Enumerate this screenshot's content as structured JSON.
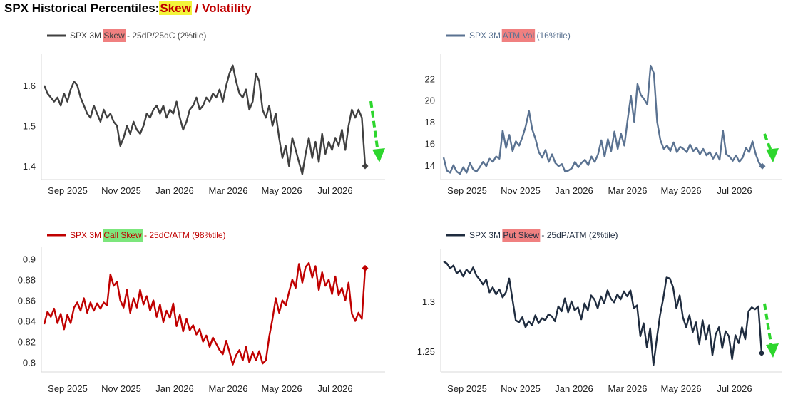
{
  "page": {
    "title_prefix": "SPX Historical Percentiles:",
    "title_highlight": "Skew",
    "title_sep": "/",
    "title_suffix": "Volatility"
  },
  "colors": {
    "skew": "#404040",
    "atm_vol": "#5a7291",
    "call_skew": "#c00000",
    "put_skew": "#1f2c3f",
    "arrow": "#2dd62d",
    "hl_red": "#f08080",
    "hl_green": "#7ce67c",
    "hl_yellow": "#f3f53a",
    "axis": "#d9d9d9"
  },
  "chart_data": [
    {
      "id": "skew",
      "type": "line",
      "legend": {
        "prefix": "SPX 3M ",
        "highlight": "Skew",
        "suffix": " - 25dP/25dC (2%tile)",
        "highlight_color": "#f08080"
      },
      "x_ticks": [
        "Sep 2025",
        "Nov 2025",
        "Jan 2026",
        "Mar 2026",
        "May 2026",
        "Jul 2026"
      ],
      "y_ticks": [
        1.4,
        1.5,
        1.6
      ],
      "ylim": [
        1.37,
        1.66
      ],
      "series": [
        {
          "color": "#404040",
          "values": [
            1.6,
            1.58,
            1.57,
            1.56,
            1.57,
            1.55,
            1.58,
            1.56,
            1.59,
            1.61,
            1.6,
            1.57,
            1.55,
            1.53,
            1.52,
            1.55,
            1.53,
            1.51,
            1.54,
            1.52,
            1.53,
            1.51,
            1.5,
            1.45,
            1.47,
            1.5,
            1.48,
            1.51,
            1.49,
            1.48,
            1.5,
            1.53,
            1.52,
            1.54,
            1.55,
            1.53,
            1.55,
            1.52,
            1.54,
            1.53,
            1.56,
            1.52,
            1.49,
            1.51,
            1.54,
            1.55,
            1.57,
            1.54,
            1.55,
            1.57,
            1.56,
            1.58,
            1.57,
            1.59,
            1.56,
            1.6,
            1.63,
            1.65,
            1.61,
            1.58,
            1.57,
            1.59,
            1.54,
            1.56,
            1.63,
            1.61,
            1.54,
            1.52,
            1.55,
            1.5,
            1.53,
            1.47,
            1.42,
            1.45,
            1.4,
            1.47,
            1.44,
            1.41,
            1.38,
            1.43,
            1.47,
            1.42,
            1.46,
            1.41,
            1.48,
            1.43,
            1.46,
            1.44,
            1.47,
            1.45,
            1.49,
            1.44,
            1.5,
            1.54,
            1.52,
            1.54,
            1.52,
            1.4
          ]
        }
      ],
      "end_marker": {
        "value": 1.4,
        "shape": "diamond"
      },
      "arrow": true
    },
    {
      "id": "atm_vol",
      "type": "line",
      "legend": {
        "prefix": "SPX 3M ",
        "highlight": "ATM Vol",
        "suffix": " (16%tile)",
        "highlight_color": "#f08080"
      },
      "x_ticks": [
        "Sep 2025",
        "Nov 2025",
        "Jan 2026",
        "Mar 2026",
        "May 2026",
        "Jul 2026"
      ],
      "y_ticks": [
        14,
        16,
        18,
        20,
        22
      ],
      "ylim": [
        12.8,
        23.6
      ],
      "series": [
        {
          "color": "#5a7291",
          "values": [
            14.7,
            13.5,
            13.3,
            14.0,
            13.4,
            13.2,
            13.8,
            13.3,
            14.2,
            13.6,
            13.4,
            13.8,
            14.3,
            13.9,
            14.6,
            14.3,
            14.8,
            14.6,
            17.2,
            15.6,
            16.8,
            15.3,
            16.2,
            15.8,
            16.6,
            17.6,
            19.0,
            17.3,
            16.4,
            15.2,
            14.7,
            15.4,
            14.3,
            15.0,
            14.2,
            13.9,
            14.1,
            13.4,
            13.5,
            13.7,
            14.3,
            13.8,
            14.2,
            14.5,
            14.0,
            14.8,
            14.3,
            15.0,
            16.3,
            14.8,
            16.4,
            15.3,
            17.1,
            15.5,
            16.9,
            15.8,
            18.2,
            20.4,
            18.0,
            21.5,
            20.5,
            20.1,
            19.6,
            23.2,
            22.5,
            18.0,
            16.3,
            15.5,
            15.8,
            15.3,
            16.1,
            15.2,
            15.7,
            15.5,
            15.2,
            15.9,
            15.3,
            15.6,
            15.0,
            15.5,
            14.9,
            15.2,
            14.6,
            15.1,
            14.5,
            17.2,
            15.0,
            14.8,
            14.4,
            14.9,
            14.3,
            14.7,
            15.6,
            15.2,
            16.2,
            15.0,
            14.2,
            13.9
          ]
        }
      ],
      "end_marker": {
        "value": 13.9,
        "shape": "diamond"
      },
      "arrow": true
    },
    {
      "id": "call_skew",
      "type": "line",
      "legend": {
        "prefix": "SPX 3M ",
        "highlight": "Call Skew",
        "suffix": " - 25dC/ATM (98%tile)",
        "highlight_color": "#7ce67c"
      },
      "x_ticks": [
        "Sep 2025",
        "Nov 2025",
        "Jan 2026",
        "Mar 2026",
        "May 2026",
        "Jul 2026"
      ],
      "y_ticks": [
        0.8,
        0.82,
        0.84,
        0.86,
        0.88,
        0.9
      ],
      "ylim": [
        0.795,
        0.905
      ],
      "series": [
        {
          "color": "#c00000",
          "values": [
            0.837,
            0.849,
            0.844,
            0.852,
            0.838,
            0.847,
            0.832,
            0.846,
            0.838,
            0.853,
            0.858,
            0.85,
            0.862,
            0.848,
            0.858,
            0.85,
            0.857,
            0.852,
            0.858,
            0.855,
            0.885,
            0.874,
            0.878,
            0.86,
            0.853,
            0.87,
            0.848,
            0.862,
            0.853,
            0.87,
            0.856,
            0.864,
            0.85,
            0.86,
            0.844,
            0.856,
            0.839,
            0.85,
            0.843,
            0.857,
            0.835,
            0.846,
            0.83,
            0.842,
            0.831,
            0.836,
            0.827,
            0.832,
            0.82,
            0.826,
            0.815,
            0.824,
            0.818,
            0.812,
            0.808,
            0.821,
            0.81,
            0.798,
            0.807,
            0.812,
            0.802,
            0.815,
            0.8,
            0.81,
            0.802,
            0.811,
            0.799,
            0.802,
            0.825,
            0.842,
            0.862,
            0.848,
            0.86,
            0.855,
            0.868,
            0.88,
            0.872,
            0.895,
            0.877,
            0.892,
            0.896,
            0.882,
            0.893,
            0.87,
            0.887,
            0.874,
            0.88,
            0.866,
            0.883,
            0.865,
            0.872,
            0.86,
            0.877,
            0.847,
            0.84,
            0.848,
            0.842,
            0.891
          ]
        }
      ],
      "end_marker": {
        "value": 0.891,
        "shape": "diamond"
      },
      "arrow": false
    },
    {
      "id": "put_skew",
      "type": "line",
      "legend": {
        "prefix": "SPX 3M ",
        "highlight": "Put Skew",
        "suffix": " - 25dP/ATM (2%tile)",
        "highlight_color": "#f08080"
      },
      "x_ticks": [
        "Sep 2025",
        "Nov 2025",
        "Jan 2026",
        "Mar 2026",
        "May 2026",
        "Jul 2026"
      ],
      "y_ticks": [
        1.25,
        1.3
      ],
      "ylim": [
        1.232,
        1.345
      ],
      "series": [
        {
          "color": "#1f2c3f",
          "values": [
            1.34,
            1.338,
            1.333,
            1.336,
            1.328,
            1.331,
            1.325,
            1.332,
            1.328,
            1.334,
            1.326,
            1.322,
            1.317,
            1.322,
            1.309,
            1.314,
            1.307,
            1.312,
            1.304,
            1.309,
            1.323,
            1.302,
            1.281,
            1.279,
            1.284,
            1.274,
            1.28,
            1.276,
            1.286,
            1.278,
            1.283,
            1.281,
            1.287,
            1.285,
            1.28,
            1.295,
            1.29,
            1.303,
            1.289,
            1.3,
            1.291,
            1.294,
            1.282,
            1.298,
            1.291,
            1.306,
            1.302,
            1.293,
            1.305,
            1.298,
            1.311,
            1.303,
            1.299,
            1.307,
            1.302,
            1.31,
            1.305,
            1.311,
            1.293,
            1.296,
            1.265,
            1.278,
            1.254,
            1.273,
            1.236,
            1.262,
            1.286,
            1.303,
            1.324,
            1.323,
            1.314,
            1.293,
            1.306,
            1.284,
            1.274,
            1.286,
            1.269,
            1.279,
            1.257,
            1.281,
            1.262,
            1.276,
            1.246,
            1.267,
            1.274,
            1.253,
            1.27,
            1.265,
            1.242,
            1.266,
            1.258,
            1.274,
            1.262,
            1.29,
            1.294,
            1.292,
            1.295,
            1.248
          ]
        }
      ],
      "end_marker": {
        "value": 1.248,
        "shape": "diamond"
      },
      "arrow": true
    }
  ]
}
